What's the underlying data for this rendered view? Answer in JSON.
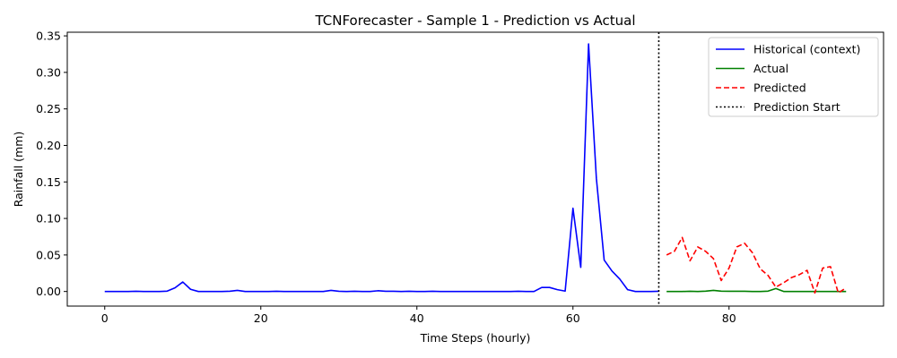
{
  "chart_data": {
    "type": "line",
    "title": "TCNForecaster - Sample 1 - Prediction vs Actual",
    "xlabel": "Time Steps (hourly)",
    "ylabel": "Rainfall (mm)",
    "xlim": [
      -4.8,
      99.8
    ],
    "ylim": [
      -0.02,
      0.355
    ],
    "xticks": [
      0,
      20,
      40,
      60,
      80
    ],
    "yticks": [
      0.0,
      0.05,
      0.1,
      0.15,
      0.2,
      0.25,
      0.3,
      0.35
    ],
    "ytick_labels": [
      "0.00",
      "0.05",
      "0.10",
      "0.15",
      "0.20",
      "0.25",
      "0.30",
      "0.35"
    ],
    "grid": false,
    "legend_position": "top-right",
    "series": [
      {
        "name": "Historical (context)",
        "color": "#0000ff",
        "style": "solid",
        "x": [
          0,
          1,
          2,
          3,
          4,
          5,
          6,
          7,
          8,
          9,
          10,
          11,
          12,
          13,
          14,
          15,
          16,
          17,
          18,
          19,
          20,
          21,
          22,
          23,
          24,
          25,
          26,
          27,
          28,
          29,
          30,
          31,
          32,
          33,
          34,
          35,
          36,
          37,
          38,
          39,
          40,
          41,
          42,
          43,
          44,
          45,
          46,
          47,
          48,
          49,
          50,
          51,
          52,
          53,
          54,
          55,
          56,
          57,
          58,
          59,
          60,
          61,
          62,
          63,
          64,
          65,
          66,
          67,
          68,
          69,
          70,
          71
        ],
        "y": [
          0,
          0,
          0,
          0,
          0.0003,
          0,
          0,
          0,
          0.0005,
          0.005,
          0.013,
          0.003,
          0,
          0,
          0,
          0,
          0.0003,
          0.0015,
          0,
          0,
          0,
          0,
          0.0003,
          0,
          0,
          0,
          0,
          0,
          0,
          0.0015,
          0.0003,
          0,
          0.0003,
          0,
          0,
          0.001,
          0.0003,
          0.0003,
          0,
          0.0003,
          0,
          0,
          0.0003,
          0,
          0,
          0,
          0,
          0,
          0,
          0,
          0,
          0,
          0,
          0.0003,
          0,
          0,
          0.0055,
          0.0055,
          0.0025,
          0.0005,
          0.114,
          0.033,
          0.339,
          0.155,
          0.043,
          0.028,
          0.017,
          0.0025,
          0,
          0,
          0,
          0.0003
        ]
      },
      {
        "name": "Actual",
        "color": "#008000",
        "style": "solid",
        "x": [
          72,
          73,
          74,
          75,
          76,
          77,
          78,
          79,
          80,
          81,
          82,
          83,
          84,
          85,
          86,
          87,
          88,
          89,
          90,
          91,
          92,
          93,
          94,
          95
        ],
        "y": [
          0,
          0,
          0,
          0.0003,
          0,
          0.0005,
          0.0015,
          0.0005,
          0.0003,
          0.0003,
          0.0003,
          0,
          0,
          0.0005,
          0.004,
          0,
          0,
          0,
          0,
          0,
          0,
          0,
          0,
          0
        ]
      },
      {
        "name": "Predicted",
        "color": "#ff0000",
        "style": "dashed",
        "x": [
          72,
          73,
          74,
          75,
          76,
          77,
          78,
          79,
          80,
          81,
          82,
          83,
          84,
          85,
          86,
          87,
          88,
          89,
          90,
          91,
          92,
          93,
          94,
          95
        ],
        "y": [
          0.05,
          0.055,
          0.074,
          0.042,
          0.061,
          0.055,
          0.045,
          0.015,
          0.032,
          0.061,
          0.066,
          0.053,
          0.031,
          0.022,
          0.006,
          0.012,
          0.019,
          0.023,
          0.029,
          -0.002,
          0.032,
          0.034,
          -0.002,
          0.005
        ]
      }
    ],
    "vline": {
      "name": "Prediction Start",
      "x": 71,
      "color": "#000000",
      "style": "dotted"
    },
    "legend": [
      {
        "label": "Historical (context)",
        "color": "#0000ff",
        "style": "solid"
      },
      {
        "label": "Actual",
        "color": "#008000",
        "style": "solid"
      },
      {
        "label": "Predicted",
        "color": "#ff0000",
        "style": "dashed"
      },
      {
        "label": "Prediction Start",
        "color": "#000000",
        "style": "dotted"
      }
    ]
  }
}
